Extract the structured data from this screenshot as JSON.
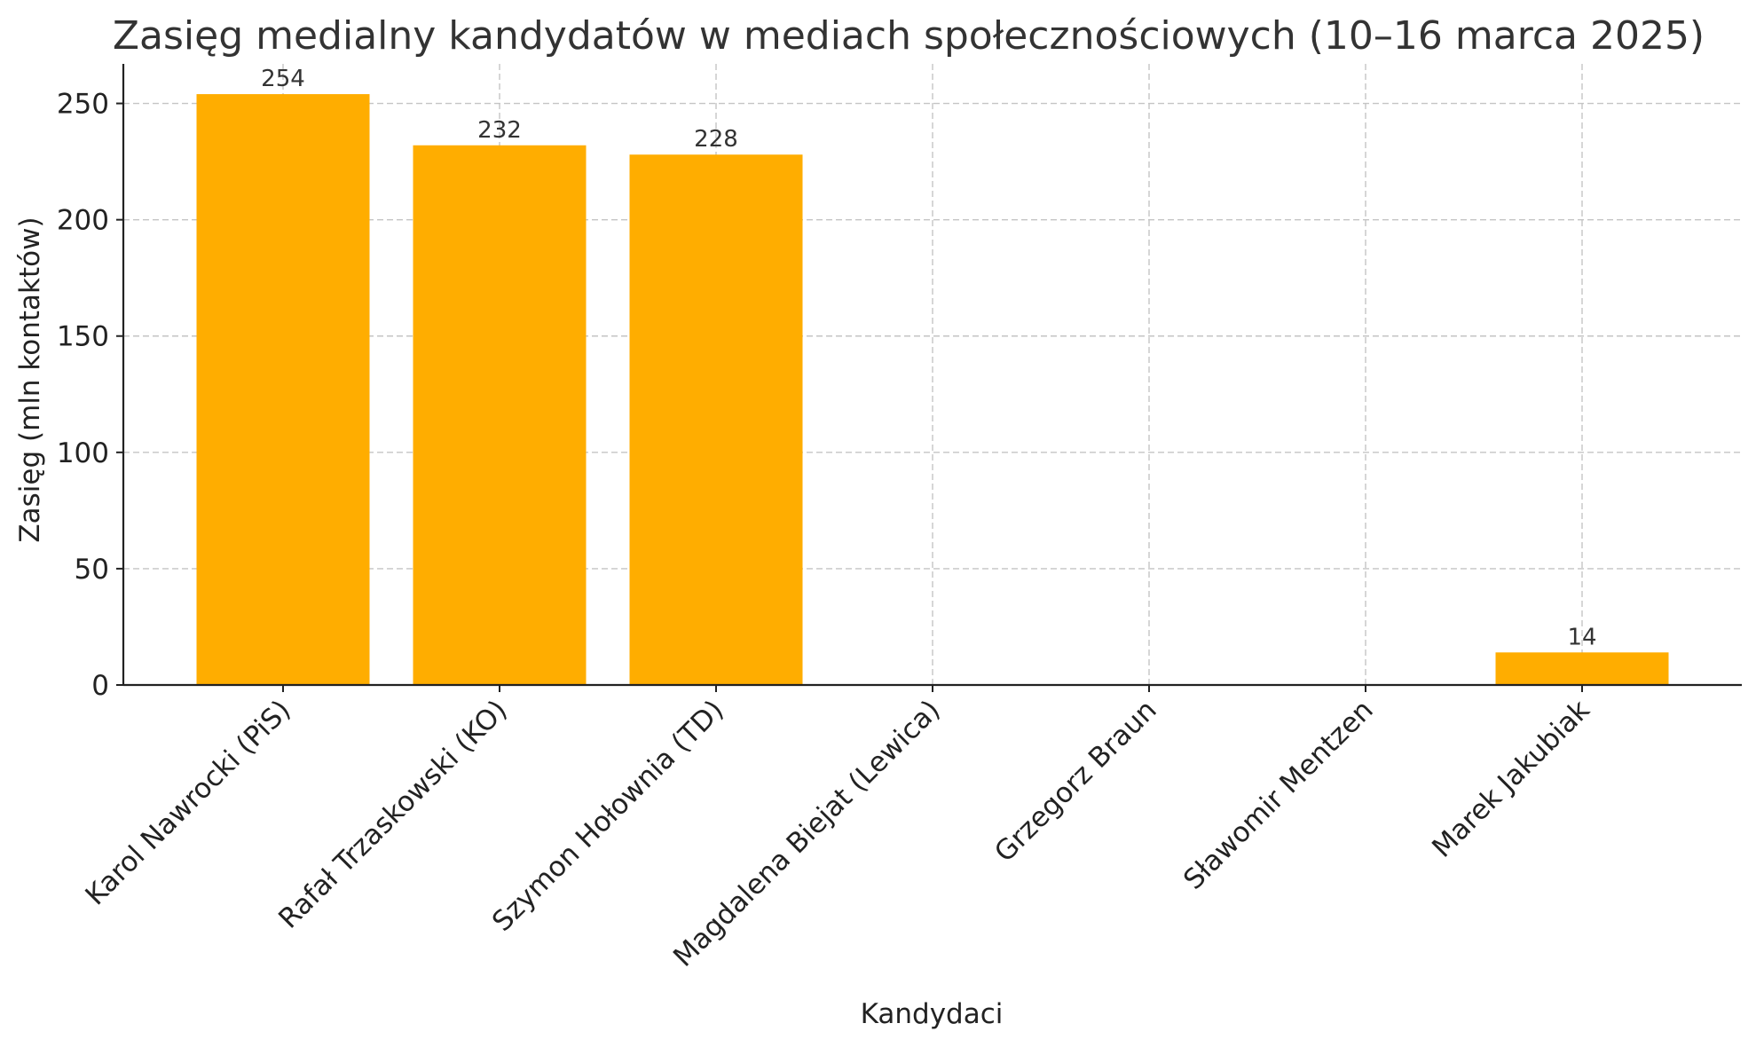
{
  "chart_data": {
    "type": "bar",
    "title": "Zasięg medialny kandydatów w mediach społecznościowych (10–16 marca 2025)",
    "xlabel": "Kandydaci",
    "ylabel": "Zasięg (mln kontaktów)",
    "categories": [
      "Karol Nawrocki (PiS)",
      "Rafał Trzaskowski (KO)",
      "Szymon Hołownia (TD)",
      "Magdalena Biejat (Lewica)",
      "Grzegorz Braun",
      "Sławomir Mentzen",
      "Marek Jakubiak"
    ],
    "values": [
      254,
      232,
      228,
      0,
      0,
      0,
      14
    ],
    "data_labels": [
      "254",
      "232",
      "228",
      "",
      "",
      "",
      "14"
    ],
    "ylim": [
      0,
      267
    ],
    "yticks": [
      0,
      50,
      100,
      150,
      200,
      250
    ],
    "grid": true,
    "bar_color": "#ffad00"
  }
}
